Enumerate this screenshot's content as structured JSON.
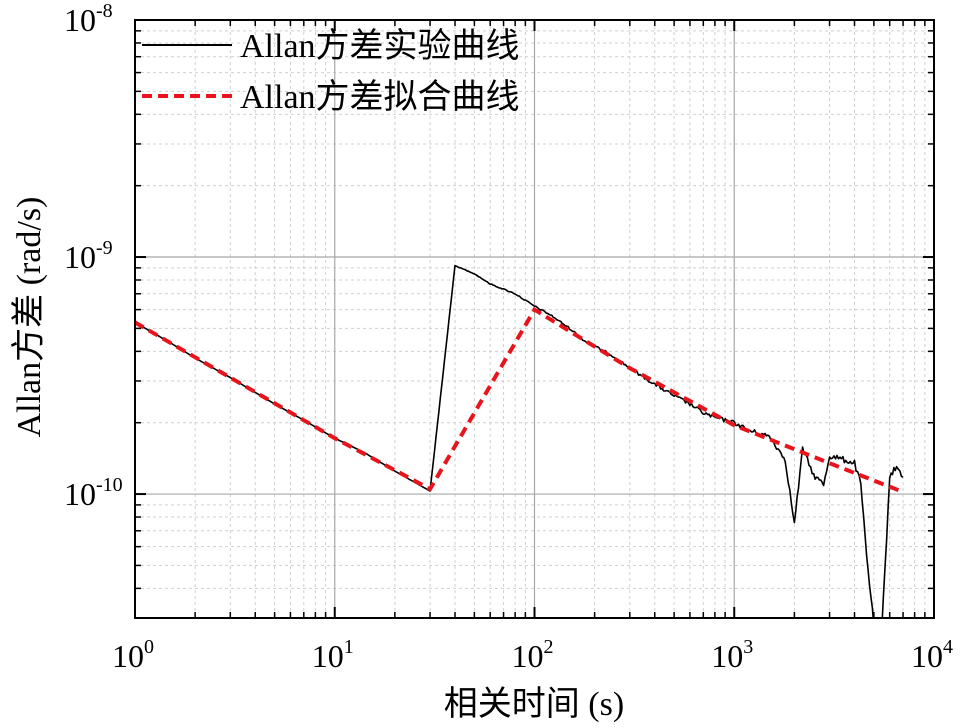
{
  "chart_data": {
    "type": "line",
    "xlabel": "相关时间 (s)",
    "ylabel": "Allan方差 (rad/s)",
    "xscale": "log",
    "yscale": "log",
    "xlim": [
      1,
      10000
    ],
    "ylim": [
      3e-11,
      1e-08
    ],
    "grid": true,
    "legend_position": "top-left",
    "x_ticks": [
      {
        "value": 1,
        "base": "10",
        "exp": "0"
      },
      {
        "value": 10,
        "base": "10",
        "exp": "1"
      },
      {
        "value": 100,
        "base": "10",
        "exp": "2"
      },
      {
        "value": 1000,
        "base": "10",
        "exp": "3"
      },
      {
        "value": 10000,
        "base": "10",
        "exp": "4"
      }
    ],
    "y_ticks": [
      {
        "value": 1e-10,
        "base": "10",
        "exp": "-10"
      },
      {
        "value": 1e-09,
        "base": "10",
        "exp": "-9"
      },
      {
        "value": 1e-08,
        "base": "10",
        "exp": "-8"
      }
    ],
    "series": [
      {
        "name": "Allan方差实验曲线",
        "color": "#000000",
        "style": "solid",
        "points": [
          [
            1,
            5.3e-10
          ],
          [
            1.5,
            4.35e-10
          ],
          [
            2,
            3.75e-10
          ],
          [
            3,
            3.1e-10
          ],
          [
            5,
            2.4e-10
          ],
          [
            7,
            2.05e-10
          ],
          [
            10,
            1.72e-10
          ],
          [
            14,
            1.5e-10
          ],
          [
            20,
            1.25e-10
          ],
          [
            30,
            1.03e-10
          ],
          [
            40,
            9.2e-10
          ],
          [
            50,
            8.5e-10
          ],
          [
            60,
            7.7e-10
          ],
          [
            80,
            7e-10
          ],
          [
            100,
            6.2e-10
          ],
          [
            120,
            5.7e-10
          ],
          [
            150,
            5e-10
          ],
          [
            180,
            4.4e-10
          ],
          [
            200,
            4.2e-10
          ],
          [
            250,
            3.8e-10
          ],
          [
            300,
            3.4e-10
          ],
          [
            400,
            2.9e-10
          ],
          [
            500,
            2.6e-10
          ],
          [
            600,
            2.4e-10
          ],
          [
            700,
            2.2e-10
          ],
          [
            800,
            2.1e-10
          ],
          [
            1000,
            2e-10
          ],
          [
            1200,
            1.85e-10
          ],
          [
            1500,
            1.75e-10
          ],
          [
            1800,
            1.4e-10
          ],
          [
            2000,
            7.5e-11
          ],
          [
            2200,
            1.55e-10
          ],
          [
            2500,
            1.2e-10
          ],
          [
            2800,
            1.1e-10
          ],
          [
            3000,
            1.45e-10
          ],
          [
            3500,
            1.4e-10
          ],
          [
            4000,
            1.35e-10
          ],
          [
            4300,
            1.1e-10
          ],
          [
            4600,
            5.5e-11
          ],
          [
            5000,
            2.8e-11
          ],
          [
            5500,
            2.8e-11
          ],
          [
            6000,
            1.2e-10
          ],
          [
            6500,
            1.3e-10
          ],
          [
            7000,
            1.18e-10
          ]
        ]
      },
      {
        "name": "Allan方差拟合曲线",
        "color": "#e8141c",
        "style": "dashed",
        "points": [
          [
            1,
            5.3e-10
          ],
          [
            3,
            3.1e-10
          ],
          [
            10,
            1.72e-10
          ],
          [
            30,
            1.05e-10
          ],
          [
            100,
            6e-10
          ],
          [
            300,
            3.4e-10
          ],
          [
            1000,
            1.95e-10
          ],
          [
            3000,
            1.35e-10
          ],
          [
            7000,
            1.02e-10
          ]
        ]
      }
    ]
  }
}
